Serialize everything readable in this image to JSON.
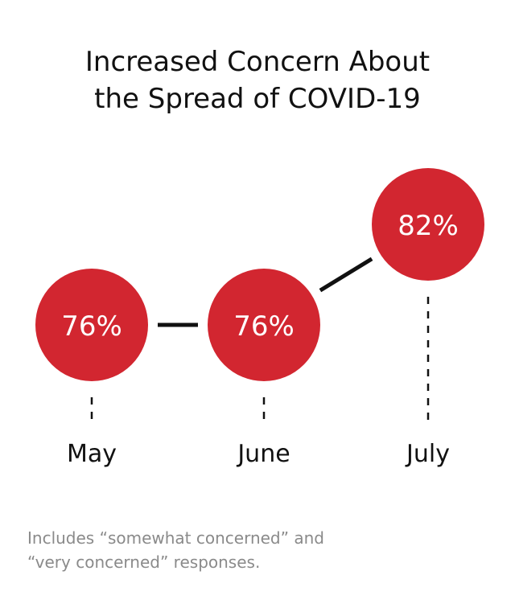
{
  "title_line1": "Increased Concern About",
  "title_line2": "the Spread of COVID-19",
  "footnote_line1": "Includes “somewhat concerned” and",
  "footnote_line2": "“very concerned” responses.",
  "colors": {
    "bubble": "#d22630",
    "bubble_text": "#ffffff",
    "connector": "#111111",
    "title": "#111111",
    "footnote": "#8a8a8a"
  },
  "chart_data": {
    "type": "line",
    "title": "Increased Concern About the Spread of COVID-19",
    "categories": [
      "May",
      "June",
      "July"
    ],
    "values": [
      76,
      76,
      82
    ],
    "labels": [
      "76%",
      "76%",
      "82%"
    ],
    "unit": "%",
    "xlabel": "",
    "ylabel": "",
    "grid": false
  }
}
